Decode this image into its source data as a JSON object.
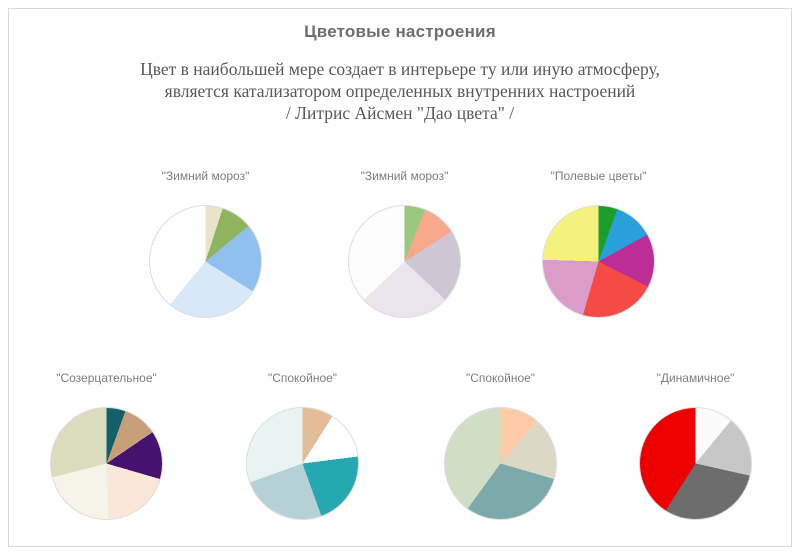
{
  "page": {
    "title": "Цветовые настроения",
    "subtitle": [
      "Цвет в наибольшей мере создает в интерьере ту или иную атмосферу,",
      "является катализатором определенных внутренних настроений",
      "/ Литрис Айсмен \"Дао цвета\" /"
    ]
  },
  "chart_data": [
    {
      "type": "pie",
      "title": "\"Зимний мороз\"",
      "start_angle_deg": 0,
      "direction": "clockwise",
      "legend": false,
      "units": "percent (estimated from slice angles)",
      "slices": [
        {
          "color": "#ebe3c8",
          "value": 5
        },
        {
          "color": "#8fb35f",
          "value": 9
        },
        {
          "color": "#90c0ee",
          "value": 20
        },
        {
          "color": "#d9e8f8",
          "value": 27
        },
        {
          "color": "#ffffff",
          "value": 39
        }
      ]
    },
    {
      "type": "pie",
      "title": "\"Зимний мороз\"",
      "start_angle_deg": 0,
      "direction": "clockwise",
      "legend": false,
      "units": "percent (estimated from slice angles)",
      "slices": [
        {
          "color": "#9bc87c",
          "value": 6
        },
        {
          "color": "#f8a98b",
          "value": 10
        },
        {
          "color": "#cfc6d3",
          "value": 21
        },
        {
          "color": "#eae5ed",
          "value": 26
        },
        {
          "color": "#fdfdfd",
          "value": 37
        }
      ]
    },
    {
      "type": "pie",
      "title": "\"Полевые цветы\"",
      "start_angle_deg": 0,
      "direction": "clockwise",
      "legend": false,
      "units": "percent (estimated from slice angles)",
      "slices": [
        {
          "color": "#1d9e2a",
          "value": 5.5
        },
        {
          "color": "#28a0dc",
          "value": 11.5
        },
        {
          "color": "#bc2e96",
          "value": 15.5
        },
        {
          "color": "#f54a45",
          "value": 22
        },
        {
          "color": "#dc9cca",
          "value": 21
        },
        {
          "color": "#f5f17d",
          "value": 24.5
        }
      ]
    },
    {
      "type": "pie",
      "title": "\"Созерцательное\"",
      "start_angle_deg": 0,
      "direction": "clockwise",
      "legend": false,
      "units": "percent (estimated from slice angles)",
      "slices": [
        {
          "color": "#14606a",
          "value": 5.5
        },
        {
          "color": "#c79f78",
          "value": 10
        },
        {
          "color": "#451270",
          "value": 14
        },
        {
          "color": "#f9e8d7",
          "value": 20
        },
        {
          "color": "#f6f4e8",
          "value": 21.5
        },
        {
          "color": "#dadcbd",
          "value": 29
        }
      ]
    },
    {
      "type": "pie",
      "title": "\"Спокойное\"",
      "start_angle_deg": 0,
      "direction": "clockwise",
      "legend": false,
      "units": "percent (estimated from slice angles)",
      "slices": [
        {
          "color": "#e3bd97",
          "value": 9
        },
        {
          "color": "#ffffff",
          "value": 14
        },
        {
          "color": "#25a8b0",
          "value": 21.5
        },
        {
          "color": "#b5d1d6",
          "value": 25
        },
        {
          "color": "#e9f3f2",
          "value": 30.5
        }
      ]
    },
    {
      "type": "pie",
      "title": "\"Спокойное\"",
      "start_angle_deg": 0,
      "direction": "clockwise",
      "legend": false,
      "units": "percent (estimated from slice angles)",
      "slices": [
        {
          "color": "#fdcba8",
          "value": 11.5
        },
        {
          "color": "#ddd7c5",
          "value": 18
        },
        {
          "color": "#7caaaa",
          "value": 30.5
        },
        {
          "color": "#cfdec5",
          "value": 40
        }
      ]
    },
    {
      "type": "pie",
      "title": "\"Динамичное\"",
      "start_angle_deg": 0,
      "direction": "clockwise",
      "legend": false,
      "units": "percent (estimated from slice angles)",
      "slices": [
        {
          "color": "#fbfbfb",
          "value": 11
        },
        {
          "color": "#c7c7c7",
          "value": 17.5
        },
        {
          "color": "#6d6d6d",
          "value": 30.5
        },
        {
          "color": "#ee0000",
          "value": 41
        }
      ]
    }
  ]
}
